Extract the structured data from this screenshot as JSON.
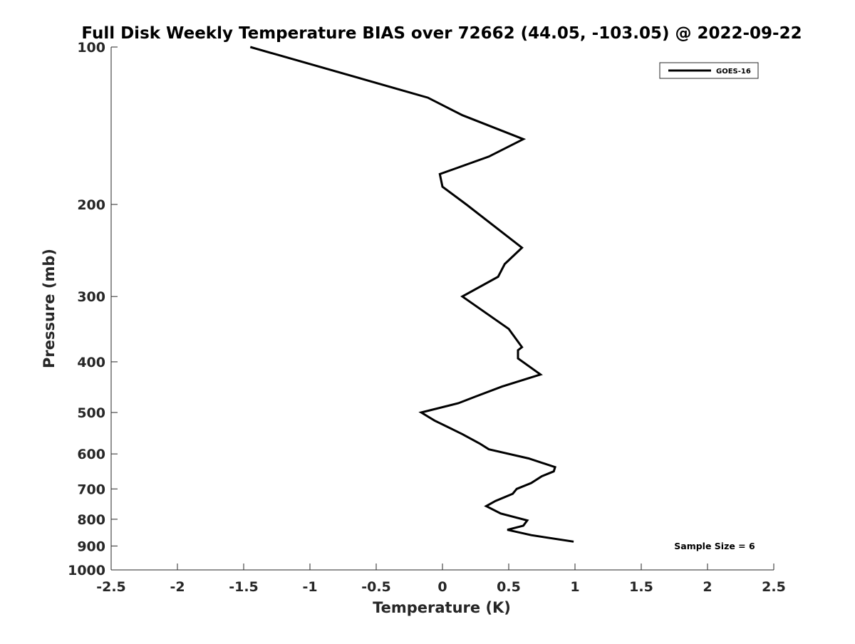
{
  "chart_data": {
    "type": "line",
    "title": "Full Disk Weekly Temperature BIAS over 72662 (44.05, -103.05) @ 2022-09-22",
    "xlabel": "Temperature (K)",
    "ylabel": "Pressure (mb)",
    "xlim": [
      -2.5,
      2.5
    ],
    "ylim": [
      100,
      1000
    ],
    "y_scale": "log",
    "y_reversed": true,
    "grid": false,
    "x_ticks": [
      -2.5,
      -2,
      -1.5,
      -1,
      -0.5,
      0,
      0.5,
      1,
      1.5,
      2,
      2.5
    ],
    "x_tick_labels": [
      "-2.5",
      "-2",
      "-1.5",
      "-1",
      "-0.5",
      "0",
      "0.5",
      "1",
      "1.5",
      "2",
      "2.5"
    ],
    "y_ticks": [
      100,
      200,
      300,
      400,
      500,
      600,
      700,
      800,
      900,
      1000
    ],
    "y_tick_labels": [
      "100",
      "200",
      "300",
      "400",
      "500",
      "600",
      "700",
      "800",
      "900",
      "1000"
    ],
    "legend": {
      "position": "top-right",
      "entries": [
        "GOES-16"
      ]
    },
    "annotation": "Sample Size = 6",
    "series": [
      {
        "name": "GOES-16",
        "color": "#000000",
        "points": [
          [
            -1.45,
            100
          ],
          [
            -0.11,
            125
          ],
          [
            0.15,
            135
          ],
          [
            0.61,
            150
          ],
          [
            0.35,
            162
          ],
          [
            -0.02,
            175
          ],
          [
            0.0,
            185
          ],
          [
            0.18,
            200
          ],
          [
            0.6,
            242
          ],
          [
            0.47,
            260
          ],
          [
            0.42,
            275
          ],
          [
            0.15,
            300
          ],
          [
            0.5,
            346
          ],
          [
            0.6,
            375
          ],
          [
            0.57,
            380
          ],
          [
            0.57,
            394
          ],
          [
            0.74,
            423
          ],
          [
            0.45,
            446
          ],
          [
            0.25,
            466
          ],
          [
            0.12,
            480
          ],
          [
            -0.16,
            500
          ],
          [
            -0.06,
            518
          ],
          [
            0.15,
            550
          ],
          [
            0.28,
            573
          ],
          [
            0.35,
            588
          ],
          [
            0.65,
            612
          ],
          [
            0.85,
            636
          ],
          [
            0.84,
            648
          ],
          [
            0.75,
            662
          ],
          [
            0.67,
            682
          ],
          [
            0.56,
            700
          ],
          [
            0.53,
            715
          ],
          [
            0.4,
            738
          ],
          [
            0.33,
            755
          ],
          [
            0.44,
            780
          ],
          [
            0.64,
            804
          ],
          [
            0.61,
            823
          ],
          [
            0.49,
            838
          ],
          [
            0.67,
            858
          ],
          [
            0.99,
            883
          ]
        ]
      }
    ]
  }
}
